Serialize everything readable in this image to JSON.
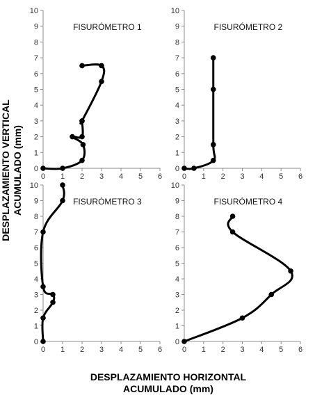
{
  "xlabel_line1": "DESPLAZAMIENTO HORIZONTAL",
  "xlabel_line2": "ACUMULADO (mm)",
  "ylabel_line1": "DESPLAZAMIENTO VERTICAL",
  "ylabel_line2": "ACUMULADO (mm)",
  "chart_data": [
    {
      "type": "line",
      "title": "FISURÓMETRO 1",
      "xlim": [
        0,
        6
      ],
      "ylim": [
        0,
        10
      ],
      "x": [
        0,
        1,
        2,
        2.05,
        1.5,
        2,
        2,
        2,
        3,
        3,
        2
      ],
      "y": [
        0,
        0,
        0.5,
        1.5,
        2,
        2,
        3,
        3,
        5.5,
        6.5,
        6.5
      ]
    },
    {
      "type": "line",
      "title": "FISURÓMETRO 2",
      "xlim": [
        0,
        6
      ],
      "ylim": [
        0,
        10
      ],
      "x": [
        0,
        0.5,
        1.5,
        1.5,
        1.5,
        1.5
      ],
      "y": [
        0,
        0,
        0.5,
        1.5,
        5,
        7
      ]
    },
    {
      "type": "line",
      "title": "FISURÓMETRO 3",
      "xlim": [
        0,
        6
      ],
      "ylim": [
        0,
        10
      ],
      "x": [
        0,
        0,
        0.5,
        0.5,
        0,
        0,
        1,
        1
      ],
      "y": [
        0,
        1.5,
        2.5,
        3,
        3.5,
        7,
        9,
        10
      ]
    },
    {
      "type": "line",
      "title": "FISURÓMETRO 4",
      "xlim": [
        0,
        6
      ],
      "ylim": [
        0,
        10
      ],
      "x": [
        0,
        3,
        4.5,
        5.5,
        2.5,
        2.5
      ],
      "y": [
        0,
        1.5,
        3,
        4.5,
        7,
        8
      ]
    }
  ]
}
